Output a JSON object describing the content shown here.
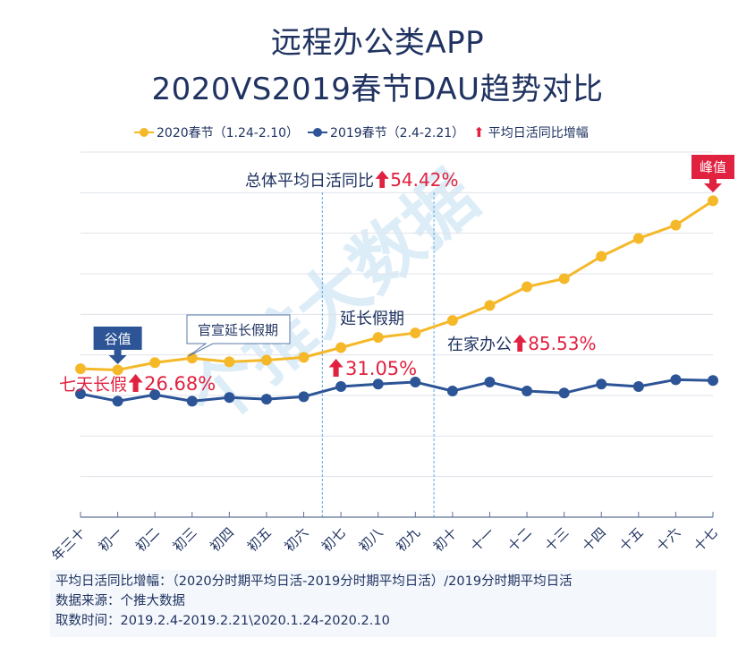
{
  "title_line1": "远程办公类APP",
  "title_line2": "2020VS2019春节DAU趋势对比",
  "legend": {
    "series_2020": "2020春节（1.24-2.10）",
    "series_2019": "2019春节（2.4-2.21）",
    "growth": "平均日活同比增幅"
  },
  "annotations": {
    "overall_label": "总体平均日活同比",
    "overall_value": "54.42%",
    "seven_day_label": "七天长假",
    "seven_day_value": "26.68%",
    "extended_label": "延长假期",
    "extended_value": "31.05%",
    "home_office_label": "在家办公",
    "home_office_value": "85.53%",
    "valley_label": "谷值",
    "peak_label": "峰值",
    "callout_label": "官宣延长假期",
    "arrow_glyph": "⬆"
  },
  "footer": {
    "line1": "平均日活同比增幅：（2020分时期平均日活-2019分时期平均日活）/2019分时期平均日活",
    "line2": "数据来源：个推大数据",
    "line3": "取数时间：2019.2.4-2019.2.21\\2020.1.24-2020.2.10"
  },
  "watermark": "个推大数据",
  "colors": {
    "series_2020": "#f5b829",
    "series_2019": "#2c5496",
    "accent_red": "#e0213f",
    "title": "#1f3260",
    "grid": "#dfe3ea",
    "divider": "#5ea9e0"
  },
  "chart_data": {
    "type": "line",
    "title": "远程办公类APP 2020VS2019春节DAU趋势对比",
    "xlabel": "",
    "ylabel": "",
    "categories": [
      "年三十",
      "初一",
      "初二",
      "初三",
      "初四",
      "初五",
      "初六",
      "初七",
      "初八",
      "初九",
      "初十",
      "十一",
      "十二",
      "十三",
      "十四",
      "十五",
      "十六",
      "十七"
    ],
    "ylim": [
      0,
      9
    ],
    "y_unit": "relative DAU (unlabeled axis, gridline units)",
    "grid": true,
    "legend_position": "top",
    "series": [
      {
        "name": "2020春节（1.24-2.10）",
        "color": "#f5b829",
        "values": [
          3.66,
          3.63,
          3.81,
          3.92,
          3.83,
          3.87,
          3.94,
          4.18,
          4.43,
          4.54,
          4.85,
          5.22,
          5.68,
          5.88,
          6.43,
          6.87,
          7.2,
          7.8
        ]
      },
      {
        "name": "2019春节（2.4-2.21）",
        "color": "#2c5496",
        "values": [
          3.04,
          2.86,
          3.02,
          2.86,
          2.95,
          2.91,
          2.97,
          3.22,
          3.28,
          3.33,
          3.11,
          3.33,
          3.11,
          3.06,
          3.28,
          3.22,
          3.39,
          3.37
        ]
      }
    ],
    "period_dividers_after": [
      "初六",
      "初九"
    ],
    "annotations": [
      {
        "text": "总体平均日活同比 ↑54.42%"
      },
      {
        "text": "七天长假 ↑26.68%",
        "period": "年三十–初六"
      },
      {
        "text": "延长假期 ↑31.05%",
        "period": "初七–初九"
      },
      {
        "text": "在家办公 ↑85.53%",
        "period": "初十–十七"
      },
      {
        "text": "谷值",
        "at": "初一",
        "series": "2020"
      },
      {
        "text": "峰值",
        "at": "十七",
        "series": "2020"
      },
      {
        "text": "官宣延长假期",
        "at": "初三"
      }
    ]
  }
}
